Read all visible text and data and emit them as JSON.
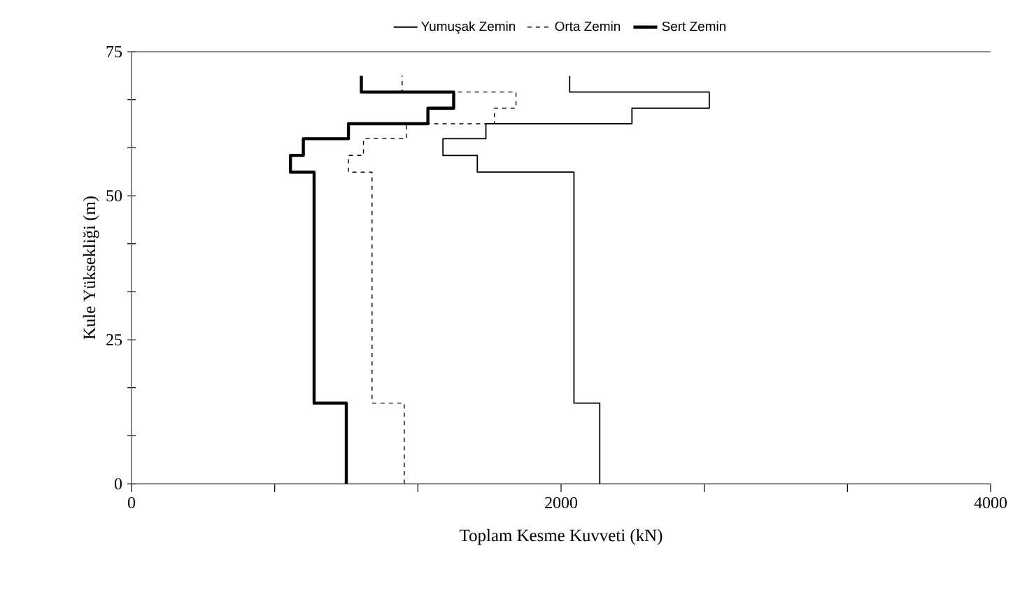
{
  "chart_data": {
    "type": "line",
    "xlabel": "Toplam Kesme Kuvveti (kN)",
    "ylabel": "Kule Yüksekliği (m)",
    "xlim": [
      0,
      4000
    ],
    "ylim": [
      0,
      75
    ],
    "xticks": [
      0,
      {
        "value": 666.7,
        "label": null
      },
      {
        "value": 1333.3,
        "label": null
      },
      2000,
      {
        "value": 2666.7,
        "label": null
      },
      {
        "value": 3333.3,
        "label": null
      },
      4000
    ],
    "yticks": [
      0,
      {
        "value": 8.33,
        "label": null
      },
      {
        "value": 16.67,
        "label": null
      },
      25,
      {
        "value": 33.33,
        "label": null
      },
      {
        "value": 41.67,
        "label": null
      },
      50,
      {
        "value": 58.33,
        "label": null
      },
      {
        "value": 66.67,
        "label": null
      },
      75
    ],
    "grid": false,
    "legend": "top",
    "marker": "none",
    "series": [
      {
        "name": "Yumuşak Zemin",
        "color": "#000000",
        "line_style": "solid",
        "x": [
          2180,
          2180,
          2060,
          2060,
          1610,
          1610,
          1450,
          1450,
          1650,
          1650,
          2330,
          2330,
          2690,
          2690,
          2040,
          2040
        ],
        "values": [
          0,
          14,
          14,
          54.1,
          54.1,
          57,
          57,
          59.9,
          59.9,
          62.5,
          62.5,
          65.2,
          65.2,
          68,
          68,
          70.8
        ]
      },
      {
        "name": "Orta Zemin",
        "color": "#000000",
        "line_style": "dashed",
        "x": [
          1270,
          1270,
          1120,
          1120,
          1010,
          1010,
          1080,
          1080,
          1280,
          1280,
          1690,
          1690,
          1790,
          1790,
          1260,
          1260
        ],
        "values": [
          0,
          14,
          14,
          54.1,
          54.1,
          57,
          57,
          59.9,
          59.9,
          62.5,
          62.5,
          65.2,
          65.2,
          68,
          68,
          70.8
        ]
      },
      {
        "name": "Sert Zemin",
        "color": "#000000",
        "line_style": "solid",
        "x": [
          1000,
          1000,
          850,
          850,
          740,
          740,
          800,
          800,
          1010,
          1010,
          1380,
          1380,
          1500,
          1500,
          1070,
          1070
        ],
        "values": [
          0,
          14,
          14,
          54.1,
          54.1,
          57,
          57,
          59.9,
          59.9,
          62.5,
          62.5,
          65.2,
          65.2,
          68,
          68,
          70.8
        ]
      }
    ]
  }
}
